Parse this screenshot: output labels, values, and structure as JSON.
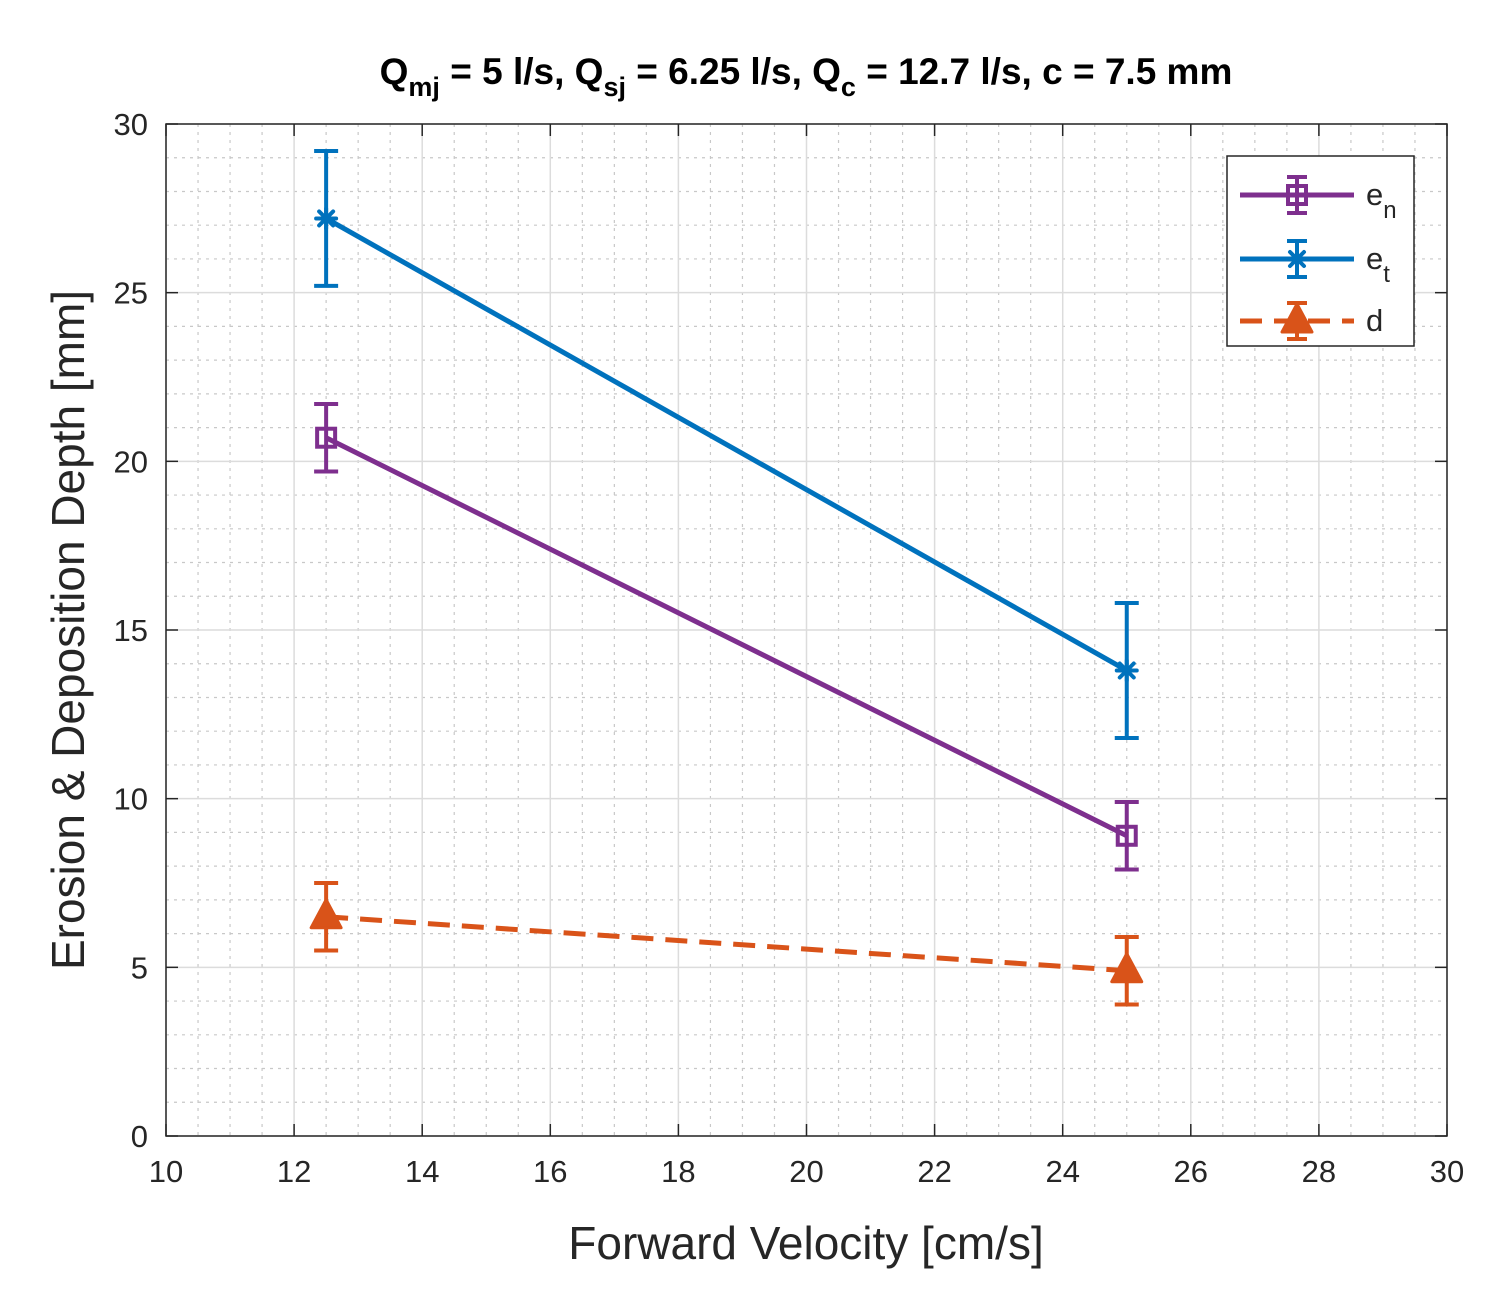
{
  "chart_data": {
    "type": "line",
    "title": {
      "parts": [
        {
          "text": "Q",
          "sub": "mj"
        },
        {
          "text": " = 5 l/s, Q",
          "sub": "sj"
        },
        {
          "text": " = 6.25 l/s, Q",
          "sub": "c"
        },
        {
          "text": " = 12.7 l/s, c = 7.5 mm",
          "sub": ""
        }
      ]
    },
    "xlabel": "Forward Velocity [cm/s]",
    "ylabel": "Erosion & Deposition Depth [mm]",
    "xlim": [
      10,
      30
    ],
    "ylim": [
      0,
      30
    ],
    "xticks": [
      10,
      12,
      14,
      16,
      18,
      20,
      22,
      24,
      26,
      28,
      30
    ],
    "yticks": [
      0,
      5,
      10,
      15,
      20,
      25,
      30
    ],
    "x_tick_labels": [
      "10",
      "12",
      "14",
      "16",
      "18",
      "20",
      "22",
      "24",
      "26",
      "28",
      "30"
    ],
    "y_tick_labels": [
      "0",
      "5",
      "10",
      "15",
      "20",
      "25",
      "30"
    ],
    "grid": true,
    "minor_grid": true,
    "legend_position": "top-right",
    "series": [
      {
        "name": "e",
        "name_sub": "n",
        "color": "#7e2f8e",
        "marker": "square",
        "line_style": "solid",
        "x": [
          12.5,
          25
        ],
        "y": [
          20.7,
          8.9
        ],
        "err": [
          1.0,
          1.0
        ]
      },
      {
        "name": "e",
        "name_sub": "t",
        "color": "#0072bd",
        "marker": "asterisk",
        "line_style": "solid",
        "x": [
          12.5,
          25
        ],
        "y": [
          27.2,
          13.8
        ],
        "err": [
          2.0,
          2.0
        ]
      },
      {
        "name": "d",
        "name_sub": "",
        "color": "#d95319",
        "marker": "triangle",
        "line_style": "dashed",
        "x": [
          12.5,
          25
        ],
        "y": [
          6.5,
          4.9
        ],
        "err": [
          1.0,
          1.0
        ]
      }
    ]
  }
}
